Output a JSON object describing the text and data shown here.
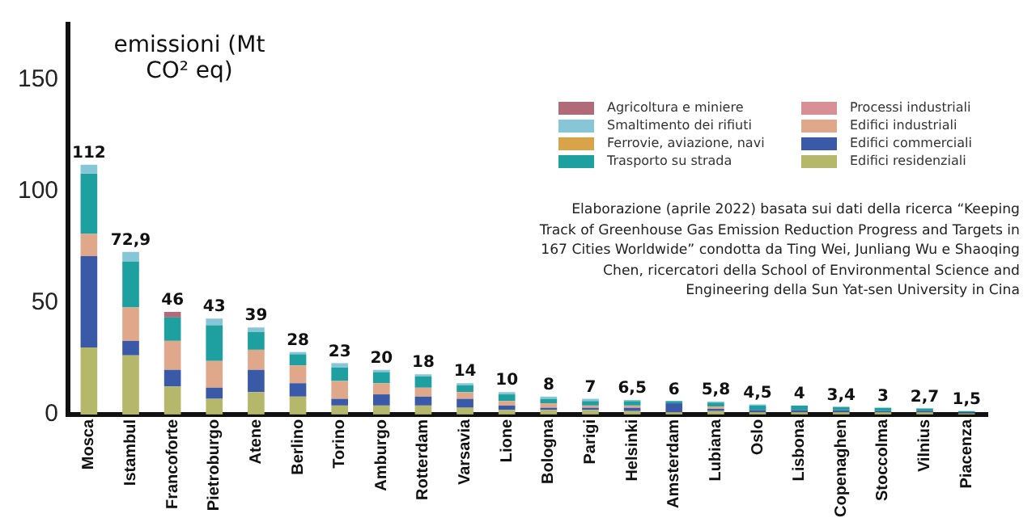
{
  "chart_data": {
    "type": "bar",
    "stacked": true,
    "ylabel": "emissioni (Mt CO² eq)",
    "categories": [
      "Mosca",
      "Istambul",
      "Francoforte",
      "Pietroburgo",
      "Atene",
      "Berlino",
      "Torino",
      "Amburgo",
      "Rotterdam",
      "Varsavia",
      "Lione",
      "Bologna",
      "Parigi",
      "Helsinki",
      "Amsterdam",
      "Lubiana",
      "Oslo",
      "Lisbona",
      "Copenaghen",
      "Stoccolma",
      "Vilnius",
      "Piacenza"
    ],
    "ylim": [
      0,
      175
    ],
    "yticks": [
      0,
      50,
      100,
      150
    ],
    "grid": false,
    "legend": "top right",
    "series": [
      {
        "name": "Edifici residenziali",
        "color": "#b5b86a",
        "values": [
          30,
          26.5,
          12.5,
          7,
          10,
          8,
          4,
          4,
          4,
          3,
          2,
          2,
          2,
          1.5,
          1,
          1.5,
          1,
          1,
          1,
          1,
          1,
          0.5
        ]
      },
      {
        "name": "Edifici commerciali",
        "color": "#3a5aa8",
        "values": [
          41,
          6.5,
          7.5,
          5,
          10,
          6,
          3,
          5,
          4,
          4,
          2,
          1,
          1,
          1.5,
          4,
          1,
          1,
          1,
          0.9,
          0.5,
          0.7,
          0.5
        ]
      },
      {
        "name": "Edifici industriali",
        "color": "#e0a88a",
        "values": [
          10,
          15,
          13,
          12,
          9,
          8,
          8,
          5,
          4,
          3,
          2,
          2,
          1,
          1,
          0,
          1,
          0,
          0,
          0,
          0,
          0,
          0
        ]
      },
      {
        "name": "Processi industriali",
        "color": "#d98f96",
        "values": [
          0,
          0,
          0,
          0,
          0,
          0,
          0,
          0,
          0,
          0,
          0,
          0,
          0,
          0,
          0,
          0,
          0,
          0,
          0,
          0,
          0,
          0
        ]
      },
      {
        "name": "Trasporto su strada",
        "color": "#1fa0a0",
        "values": [
          27,
          20.5,
          10.5,
          16,
          8,
          5,
          6,
          5,
          5,
          3,
          3,
          2,
          2,
          2,
          1,
          1.8,
          2,
          2,
          1.5,
          1.5,
          1,
          0.5
        ]
      },
      {
        "name": "Ferrovie, aviazione, navi",
        "color": "#d9a34a",
        "values": [
          0,
          0,
          0,
          0,
          0,
          0,
          0,
          0,
          0,
          0,
          0,
          0,
          0,
          0,
          0,
          0,
          0,
          0,
          0,
          0,
          0,
          0
        ]
      },
      {
        "name": "Smaltimento dei rifiuti",
        "color": "#86c6d6",
        "values": [
          4,
          4.4,
          0,
          3,
          2,
          1,
          2,
          1,
          1,
          1,
          1,
          1,
          1,
          0.5,
          0,
          0.5,
          0.5,
          0,
          0,
          0,
          0,
          0
        ]
      },
      {
        "name": "Agricoltura e miniere",
        "color": "#b06a78",
        "values": [
          0,
          0,
          2.5,
          0,
          0,
          0,
          0,
          0,
          0,
          0,
          0,
          0,
          0,
          0,
          0,
          0,
          0,
          0,
          0,
          0,
          0,
          0
        ]
      }
    ],
    "totals": [
      "112",
      "72,9",
      "46",
      "43",
      "39",
      "28",
      "23",
      "20",
      "18",
      "14",
      "10",
      "8",
      "7",
      "6,5",
      "6",
      "5,8",
      "4,5",
      "4",
      "3,4",
      "3",
      "2,7",
      "1,5"
    ],
    "annotations": [
      "Elaborazione (aprile 2022) basata sui dati della ricerca “Keeping Track of Greenhouse Gas Emission Reduction Progress and Targets in 167 Cities Worldwide” condotta da Ting Wei, Junliang Wu e Shaoqing Chen, ricercatori della School of Environmental Science and Engineering della Sun Yat-sen University in Cina"
    ]
  }
}
